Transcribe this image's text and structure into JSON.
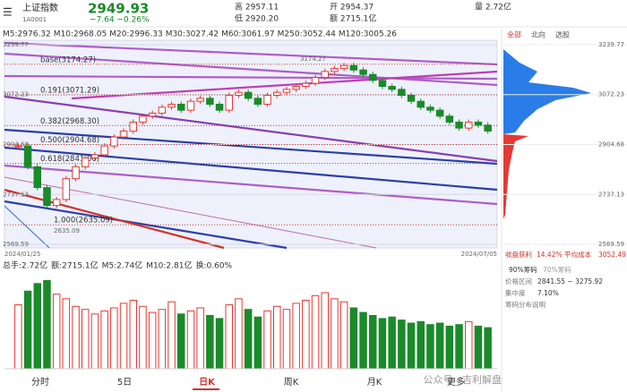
{
  "header": {
    "name": "上证指数",
    "code": "1A0001",
    "price": "2949.93",
    "change": "−7.64  −0.26%",
    "high": "高 2957.11",
    "low": "低 2920.20",
    "open": "开 2954.37",
    "amount": "额 2715.1亿",
    "volume": "量 2.72亿"
  },
  "ma_labels": [
    {
      "text": "M5:2976.32",
      "color": "#222222"
    },
    {
      "text": "M10:2968.05",
      "color": "#e8a317"
    },
    {
      "text": "M20:2996.33",
      "color": "#e0458c"
    },
    {
      "text": "M30:3027.42",
      "color": "#2e9e44"
    },
    {
      "text": "M60:3061.97",
      "color": "#2a6bd8"
    },
    {
      "text": "M250:3052.44",
      "color": "#8a3fb0"
    },
    {
      "text": "M120:3005.26",
      "color": "#d0342c"
    }
  ],
  "main_chart": {
    "ylim": [
      2569.59,
      3239.77
    ],
    "yticks": [
      3239.77,
      3072.23,
      2904.68,
      2737.13,
      2569.59
    ],
    "fib_levels": [
      {
        "label": "base(3174.27)",
        "value": 3174.27
      },
      {
        "label": "0.191(3071.29)",
        "value": 3071.29
      },
      {
        "label": "0.382(2968.30)",
        "value": 2968.3
      },
      {
        "label": "0.500(2904.68)",
        "value": 2904.68
      },
      {
        "label": "0.618(2841.06)",
        "value": 2841.06
      },
      {
        "label": "1.000(2635.09)",
        "value": 2635.09
      }
    ],
    "peak_label": "3174.27",
    "low_label": "2635.09",
    "start_date": "2024/01/25",
    "end_date": "2024/07/05",
    "closes": [
      2900,
      2830,
      2760,
      2700,
      2720,
      2790,
      2830,
      2860,
      2870,
      2900,
      2930,
      2950,
      2980,
      3000,
      3010,
      3030,
      3040,
      3020,
      3050,
      3060,
      3040,
      3020,
      3070,
      3080,
      3060,
      3040,
      3070,
      3080,
      3090,
      3100,
      3110,
      3130,
      3150,
      3160,
      3170,
      3155,
      3140,
      3120,
      3100,
      3090,
      3070,
      3050,
      3030,
      3020,
      3000,
      2980,
      2960,
      2980,
      2970,
      2950
    ]
  },
  "volume": {
    "header": [
      {
        "text": "总手:2.72亿",
        "color": "#d0342c"
      },
      {
        "text": "额:2715.1亿",
        "color": "#d0342c"
      },
      {
        "text": "M5:2.74亿",
        "color": "#222222"
      },
      {
        "text": "M10:2.81亿",
        "color": "#e8a317"
      },
      {
        "text": "换:0.60%",
        "color": "#e0458c"
      }
    ],
    "values": [
      4.2,
      5.1,
      5.6,
      5.8,
      4.9,
      4.6,
      4.1,
      3.9,
      3.6,
      3.8,
      4.0,
      4.3,
      4.5,
      4.1,
      3.7,
      3.9,
      4.4,
      3.6,
      3.8,
      4.0,
      3.5,
      3.3,
      4.2,
      4.6,
      3.9,
      3.4,
      3.8,
      4.1,
      3.9,
      4.3,
      4.5,
      4.8,
      5.0,
      4.6,
      4.4,
      4.0,
      3.7,
      3.5,
      3.3,
      3.4,
      3.2,
      3.0,
      3.1,
      2.9,
      3.0,
      2.8,
      2.9,
      3.1,
      2.8,
      2.7
    ]
  },
  "right_panel": {
    "tabs": [
      "全部",
      "北向",
      "选股"
    ],
    "yticks": [
      3239.77,
      3072.23,
      2904.68,
      2737.13,
      2569.59
    ],
    "profit": "收盘获利",
    "profit_value": "14.42%",
    "avg_cost": "平均成本",
    "avg_cost_value": "3052.49",
    "chip_tabs": [
      "90%筹码",
      "70%筹码"
    ],
    "range_label": "价格区间",
    "range_value": "2841.55 − 3275.92",
    "conc_label": "集中度",
    "conc_value": "7.10%",
    "help": "筹码分布说明"
  },
  "bottom_tabs": [
    "分时",
    "5日",
    "日K",
    "周K",
    "月K",
    "更多"
  ],
  "watermark": "公众号 · 吉利解盘"
}
